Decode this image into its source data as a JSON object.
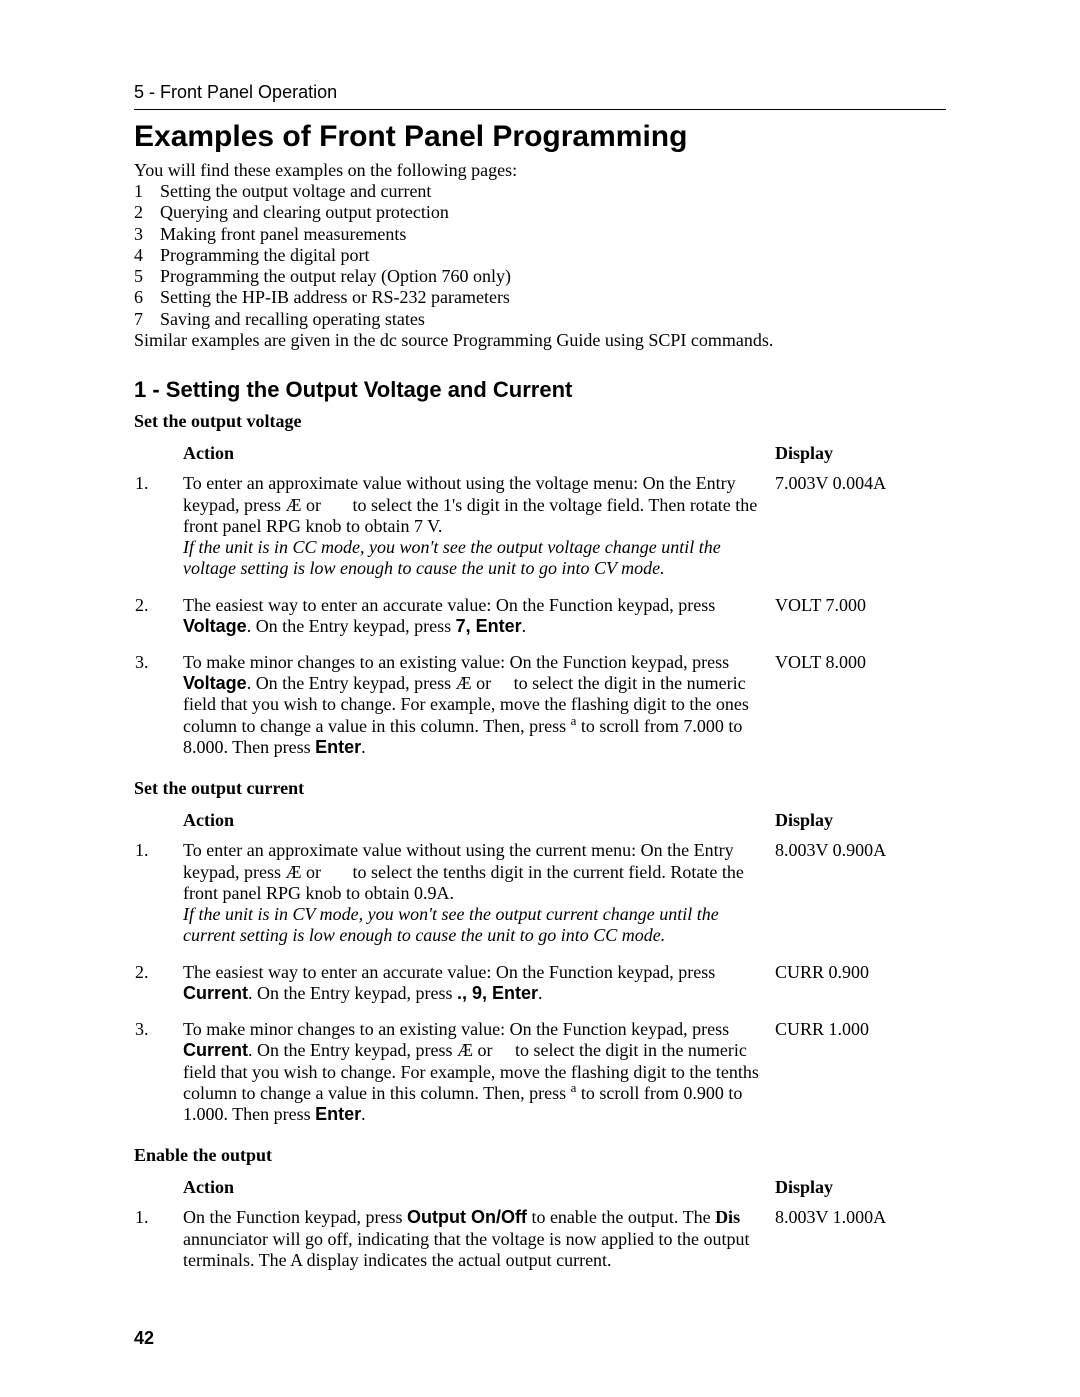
{
  "page": {
    "running_head": "5 - Front Panel Operation",
    "number": "42"
  },
  "title": "Examples of Front Panel Programming",
  "intro": "You will find these examples on the following pages:",
  "examples": [
    {
      "n": "1",
      "t": "Setting the output voltage and current"
    },
    {
      "n": "2",
      "t": "Querying and clearing output protection"
    },
    {
      "n": "3",
      "t": "Making front panel measurements"
    },
    {
      "n": "4",
      "t": "Programming the digital port"
    },
    {
      "n": "5",
      "t": "Programming the output relay (Option 760 only)"
    },
    {
      "n": "6",
      "t": "Setting the HP-IB address or RS-232 parameters"
    },
    {
      "n": "7",
      "t": "Saving and recalling operating states"
    }
  ],
  "after_list": "Similar examples are given in the dc source Programming Guide using SCPI commands.",
  "sec1": {
    "heading": "1 - Setting the Output Voltage and Current",
    "voltage": {
      "heading": "Set the output voltage",
      "th_action": "Action",
      "th_display": "Display",
      "rows": [
        {
          "n": "1.",
          "a_lead": "To enter an approximate value without using the voltage menu: On the Entry keypad, press Æ  or",
          "a_tail": "to select the 1's digit in the voltage field. Then rotate the front panel RPG knob to obtain 7 V.",
          "a_italic": "If the unit is in CC mode, you won't see the output voltage change until the voltage setting is low enough to cause the unit to go into CV mode.",
          "d": "7.003V  0.004A"
        },
        {
          "n": "2.",
          "a_lead": "The easiest way to enter an accurate value: On the Function keypad, press ",
          "a_bold1": "Voltage",
          "a_mid": ". On the Entry keypad, press ",
          "a_bold2": "7, Enter",
          "a_tail": ".",
          "d": "VOLT 7.000"
        },
        {
          "n": "3.",
          "a_lead": "To make minor changes to an existing value: On the Function keypad, press ",
          "a_bold1": "Voltage",
          "a_mid": ". On the Entry keypad, press Æ  or",
          "a_mid2": "to select the digit in the numeric field that you wish to change. For example, move the flashing digit to the ones column to change a value in this column.  Then, press ",
          "a_sup": "a",
          "a_tail": "  to scroll from 7.000 to 8.000. Then press ",
          "a_bold2": "Enter",
          "a_end": ".",
          "d": "VOLT 8.000"
        }
      ]
    },
    "current": {
      "heading": "Set the output current",
      "th_action": "Action",
      "th_display": "Display",
      "rows": [
        {
          "n": "1.",
          "a_lead": "To enter an approximate value without using the current menu: On the Entry keypad, press Æ  or",
          "a_tail": "to select the tenths digit in the current field. Rotate the front panel RPG knob to obtain 0.9A.",
          "a_italic": "If the unit is in CV mode, you won't see the output current change until the current setting is low enough to cause the unit to go into CC mode.",
          "d": "8.003V  0.900A"
        },
        {
          "n": "2.",
          "a_lead": "The easiest way to enter an accurate value: On the Function keypad, press ",
          "a_bold1": "Current",
          "a_mid": ". On the Entry keypad, press ",
          "a_bold2": "., 9,  Enter",
          "a_tail": ".",
          "d": "CURR 0.900"
        },
        {
          "n": "3.",
          "a_lead": "To make minor changes to an existing value: On the Function keypad, press ",
          "a_bold1": "Current",
          "a_mid": ". On the Entry keypad, press Æ  or",
          "a_mid2": "to select the digit in the numeric field that you wish to change. For example, move the flashing digit to the tenths column to change a value in this column.  Then, press ",
          "a_sup": "a",
          "a_tail": "  to scroll from 0.900 to 1.000. Then press ",
          "a_bold2": "Enter",
          "a_end": ".",
          "d": "CURR 1.000"
        }
      ]
    },
    "enable": {
      "heading": "Enable the output",
      "th_action": "Action",
      "th_display": "Display",
      "rows": [
        {
          "n": "1.",
          "a_lead": "On the Function keypad, press ",
          "a_bold1": "Output On/Off",
          "a_mid": " to enable the output. The ",
          "a_bold2": "Dis",
          "a_tail": " annunciator will go off, indicating that the voltage is now applied to the output terminals.  The A display indicates the actual output current.",
          "d": "8.003V  1.000A"
        }
      ]
    }
  }
}
